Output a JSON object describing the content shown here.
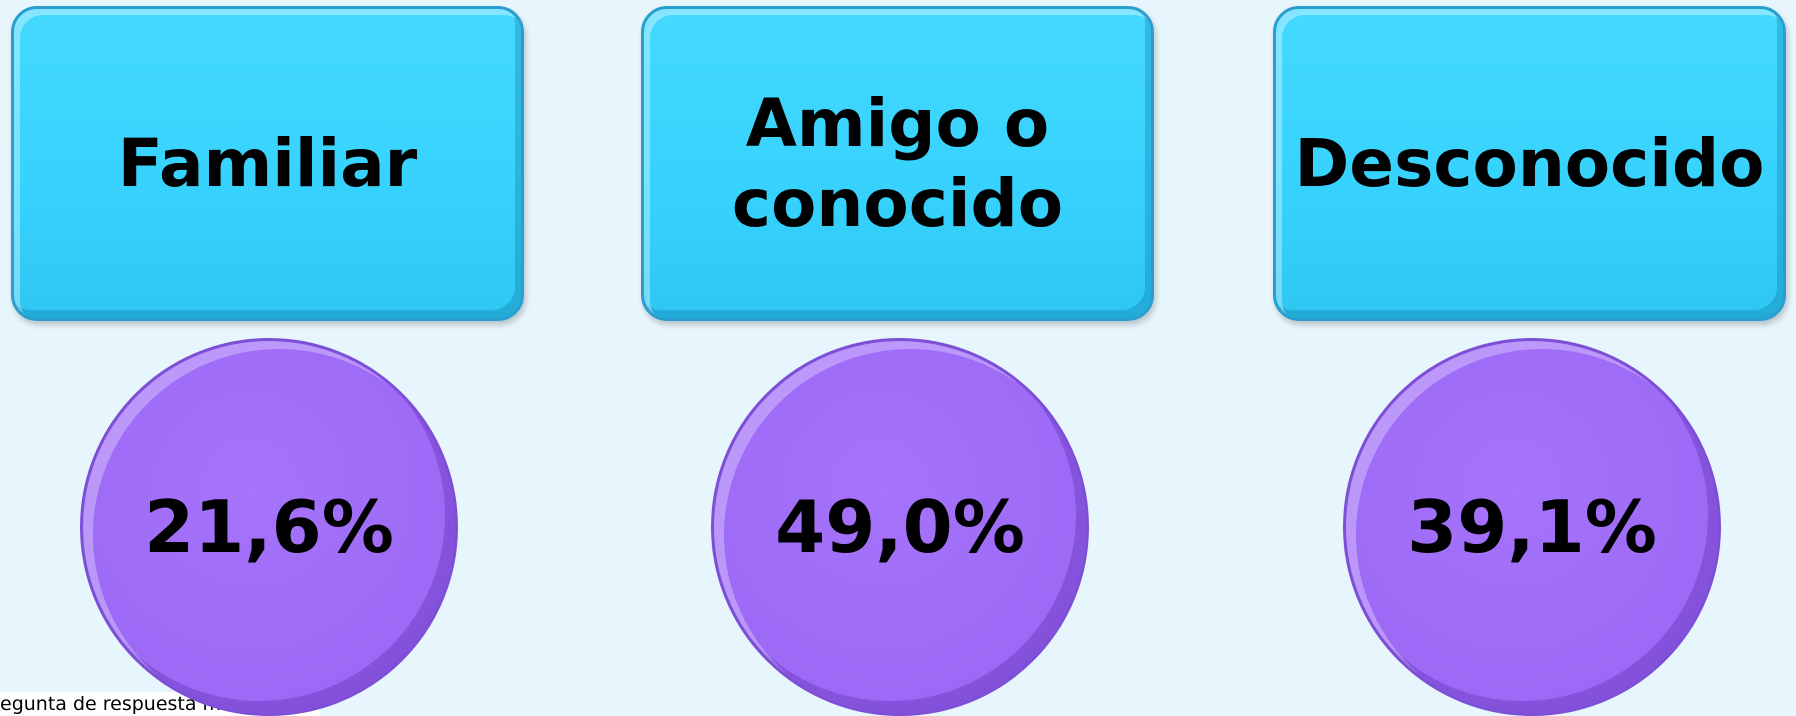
{
  "items": [
    {
      "label": "Familiar",
      "value": "21,6%"
    },
    {
      "label": "Amigo o conocido",
      "value": "49,0%"
    },
    {
      "label": "Desconocido",
      "value": "39,1%"
    }
  ],
  "footnote": "egunta de respuesta múltiple"
}
